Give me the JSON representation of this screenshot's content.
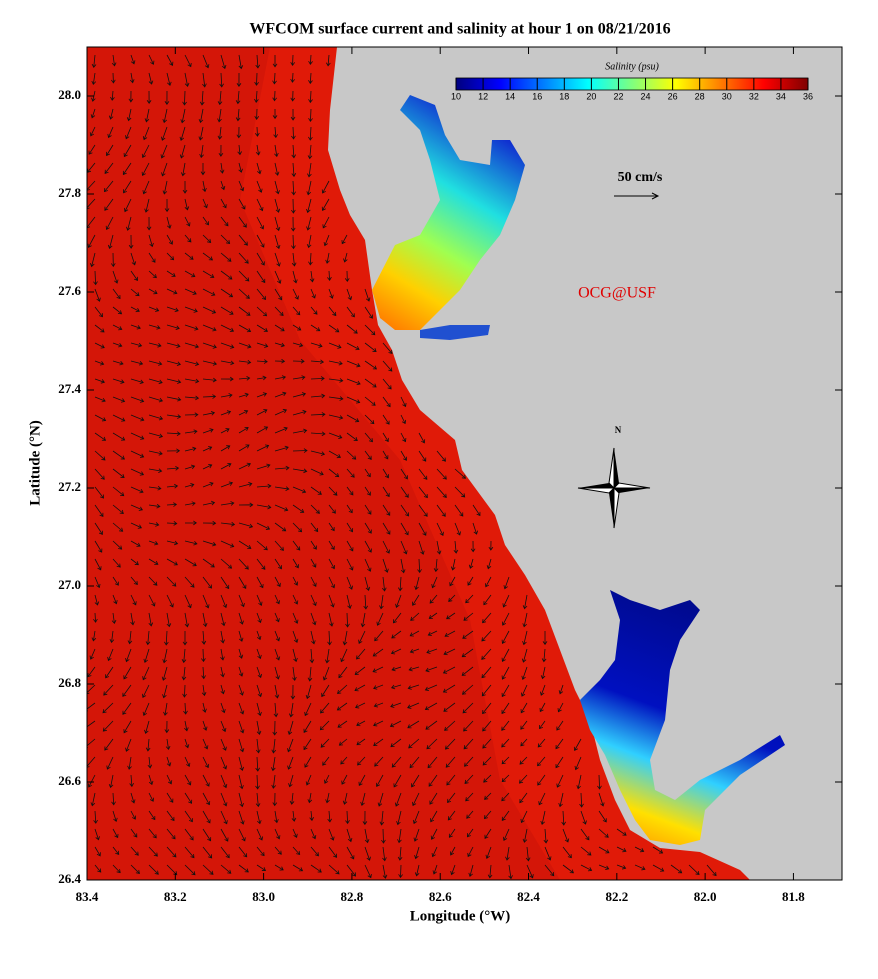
{
  "chart_data": {
    "type": "map",
    "title": "WFCOM surface current and salinity at hour 1 on 08/21/2016",
    "x_label": "Longitude (°W)",
    "y_label": "Latitude (°N)",
    "xlim": [
      83.4,
      81.69
    ],
    "ylim": [
      26.4,
      28.1
    ],
    "xticks": [
      83.4,
      83.2,
      {
        "value": 83,
        "label": "83.0"
      },
      82.8,
      82.6,
      82.4,
      82.2,
      {
        "value": 82,
        "label": "82.0"
      },
      81.8
    ],
    "yticks": [
      26.4,
      26.6,
      26.8,
      {
        "value": 27,
        "label": "27.0"
      },
      27.2,
      27.4,
      27.6,
      27.8,
      {
        "value": 28,
        "label": "28.0"
      }
    ],
    "colorbar": {
      "title": "Salinity (psu)",
      "lim": [
        10,
        36
      ],
      "ticks": [
        10,
        12,
        14,
        16,
        18,
        20,
        22,
        24,
        26,
        28,
        30,
        32,
        34,
        36
      ],
      "colormap": "jet"
    },
    "scale_label": "50 cm/s",
    "credit": "OCG@USF",
    "north_label": "N"
  }
}
